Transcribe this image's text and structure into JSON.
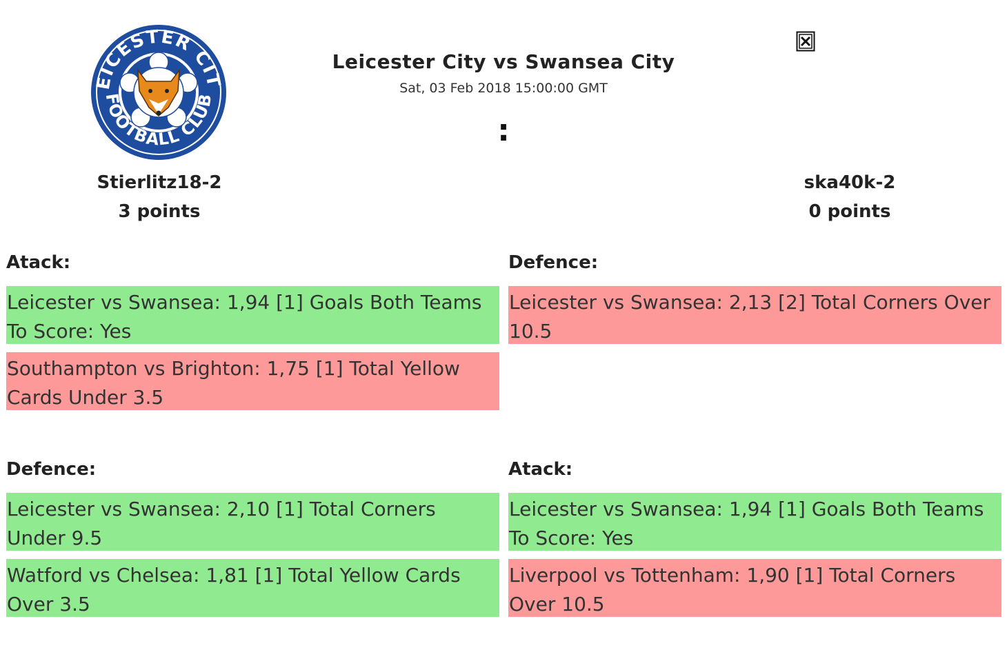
{
  "match": {
    "title": "Leicester City vs Swansea City",
    "date": "Sat, 03 Feb 2018 15:00:00 GMT",
    "score_separator": ":"
  },
  "logo": {
    "icon": "leicester-city-crest",
    "colors": {
      "ring": "#1e4da0",
      "fox": "#e8891c",
      "white": "#ffffff"
    }
  },
  "close": {
    "icon": "close-icon"
  },
  "players": {
    "left": {
      "name": "Stierlitz18-2",
      "points": "3 points"
    },
    "right": {
      "name": "ska40k-2",
      "points": "0 points"
    }
  },
  "colors": {
    "win": "#90ea90",
    "loss": "#fd9999"
  },
  "sections": [
    {
      "title": "Atack:",
      "bets": [
        {
          "text": "Leicester vs Swansea: 1,94 [1] Goals Both Teams To Score: Yes",
          "status": "win"
        },
        {
          "text": "Southampton vs Brighton: 1,75 [1] Total Yellow Cards Under 3.5",
          "status": "loss"
        }
      ]
    },
    {
      "title": "Defence:",
      "bets": [
        {
          "text": "Leicester vs Swansea: 2,13 [2] Total Corners Over 10.5",
          "status": "loss"
        }
      ]
    },
    {
      "title": "Defence:",
      "bets": [
        {
          "text": "Leicester vs Swansea: 2,10 [1] Total Corners Under 9.5",
          "status": "win"
        },
        {
          "text": "Watford vs Chelsea: 1,81 [1] Total Yellow Cards Over 3.5",
          "status": "win"
        }
      ]
    },
    {
      "title": "Atack:",
      "bets": [
        {
          "text": "Leicester vs Swansea: 1,94 [1] Goals Both Teams To Score: Yes",
          "status": "win"
        },
        {
          "text": "Liverpool vs Tottenham: 1,90 [1] Total Corners Over 10.5",
          "status": "loss"
        }
      ]
    }
  ]
}
